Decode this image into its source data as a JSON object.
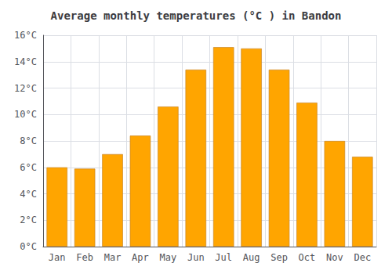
{
  "chart_data": {
    "type": "bar",
    "title": "Average monthly temperatures (°C ) in Bandon",
    "categories": [
      "Jan",
      "Feb",
      "Mar",
      "Apr",
      "May",
      "Jun",
      "Jul",
      "Aug",
      "Sep",
      "Oct",
      "Nov",
      "Dec"
    ],
    "values": [
      6.0,
      5.9,
      7.0,
      8.4,
      10.6,
      13.4,
      15.1,
      15.0,
      13.4,
      10.9,
      8.0,
      6.8
    ],
    "color": "#FFA500",
    "ylim": [
      0,
      16
    ],
    "yticks": [
      {
        "value": 0,
        "label": "0°C"
      },
      {
        "value": 2,
        "label": "2°C"
      },
      {
        "value": 4,
        "label": "4°C"
      },
      {
        "value": 6,
        "label": "6°C"
      },
      {
        "value": 8,
        "label": "8°C"
      },
      {
        "value": 10,
        "label": "10°C"
      },
      {
        "value": 12,
        "label": "12°C"
      },
      {
        "value": 14,
        "label": "14°C"
      },
      {
        "value": 16,
        "label": "16°C"
      }
    ],
    "grid": true
  }
}
